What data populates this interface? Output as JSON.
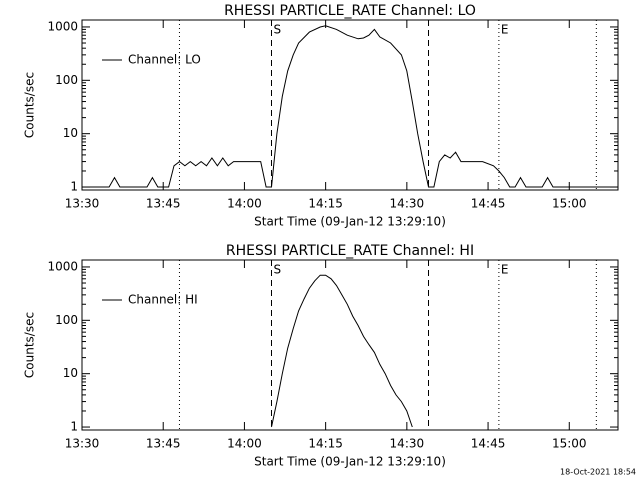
{
  "chart_data": [
    {
      "type": "line",
      "title": "RHESSI PARTICLE_RATE Channel: LO",
      "x_label": "Start Time (09-Jan-12 13:29:10)",
      "y_label": "Counts/sec",
      "log_y": true,
      "legend": "upper left",
      "xlim": [
        "13:30",
        "15:09"
      ],
      "ylim": [
        0.88,
        1350
      ],
      "xticks": [
        "13:30",
        "13:45",
        "14:00",
        "14:15",
        "14:30",
        "14:45",
        "15:00"
      ],
      "yticks": [
        1,
        10,
        100,
        1000
      ],
      "markers": [
        {
          "x": "14:05",
          "style": "dashed",
          "label": "S"
        },
        {
          "x": "14:34",
          "style": "dashed"
        },
        {
          "x": "13:48",
          "style": "dotted"
        },
        {
          "x": "14:47",
          "style": "dotted",
          "label": "E"
        },
        {
          "x": "15:05",
          "style": "dotted"
        }
      ],
      "x": [
        "13:30",
        "13:35",
        "13:36",
        "13:37",
        "13:42",
        "13:43",
        "13:44",
        "13:46",
        "13:47",
        "13:48",
        "13:49",
        "13:50",
        "13:51",
        "13:52",
        "13:53",
        "13:54",
        "13:55",
        "13:56",
        "13:57",
        "13:58",
        "14:00",
        "14:02",
        "14:03",
        "14:04",
        "14:05",
        "14:06",
        "14:07",
        "14:08",
        "14:09",
        "14:10",
        "14:12",
        "14:14",
        "14:15",
        "14:17",
        "14:19",
        "14:21",
        "14:22",
        "14:23",
        "14:24",
        "14:25",
        "14:27",
        "14:29",
        "14:30",
        "14:31",
        "14:32",
        "14:33",
        "14:34",
        "14:35",
        "14:36",
        "14:37",
        "14:38",
        "14:39",
        "14:40",
        "14:42",
        "14:44",
        "14:46",
        "14:47",
        "14:48",
        "14:49",
        "14:50",
        "14:51",
        "14:52",
        "14:55",
        "14:56",
        "14:57",
        "15:09"
      ],
      "series": [
        {
          "name": "Channel: LO",
          "color": "#000000",
          "values": [
            1,
            1,
            1.5,
            1,
            1,
            1.5,
            1,
            1,
            2.5,
            3,
            2.5,
            3,
            2.5,
            3,
            2.5,
            3.5,
            2.5,
            3.5,
            2.5,
            3,
            3,
            3,
            3,
            1,
            1,
            10,
            50,
            150,
            300,
            500,
            800,
            1000,
            1050,
            900,
            700,
            600,
            620,
            700,
            900,
            650,
            500,
            300,
            150,
            40,
            10,
            3,
            1,
            1,
            3,
            4,
            3.5,
            4.5,
            3,
            3,
            3,
            2.5,
            2,
            1.5,
            1,
            1,
            1.5,
            1,
            1,
            1.5,
            1,
            1
          ]
        }
      ]
    },
    {
      "type": "line",
      "title": "RHESSI PARTICLE_RATE Channel: HI",
      "x_label": "Start Time (09-Jan-12 13:29:10)",
      "y_label": "Counts/sec",
      "log_y": true,
      "legend": "upper left",
      "xlim": [
        "13:30",
        "15:09"
      ],
      "ylim": [
        0.88,
        1350
      ],
      "xticks": [
        "13:30",
        "13:45",
        "14:00",
        "14:15",
        "14:30",
        "14:45",
        "15:00"
      ],
      "yticks": [
        1,
        10,
        100,
        1000
      ],
      "markers": [
        {
          "x": "14:05",
          "style": "dashed",
          "label": "S"
        },
        {
          "x": "14:34",
          "style": "dashed"
        },
        {
          "x": "13:48",
          "style": "dotted"
        },
        {
          "x": "14:47",
          "style": "dotted",
          "label": "E"
        },
        {
          "x": "15:05",
          "style": "dotted"
        }
      ],
      "x": [
        "14:05",
        "14:06",
        "14:07",
        "14:08",
        "14:09",
        "14:10",
        "14:11",
        "14:12",
        "14:13",
        "14:14",
        "14:15",
        "14:16",
        "14:17",
        "14:18",
        "14:19",
        "14:20",
        "14:21",
        "14:22",
        "14:23",
        "14:24",
        "14:25",
        "14:26",
        "14:27",
        "14:28",
        "14:29",
        "14:30",
        "14:31"
      ],
      "series": [
        {
          "name": "Channel: HI",
          "color": "#000000",
          "values": [
            1,
            3,
            10,
            30,
            70,
            150,
            250,
            400,
            550,
            700,
            700,
            600,
            450,
            300,
            200,
            120,
            80,
            50,
            35,
            25,
            15,
            10,
            6,
            4,
            3,
            2,
            1
          ]
        }
      ]
    }
  ],
  "footer": "18-Oct-2021 18:54"
}
